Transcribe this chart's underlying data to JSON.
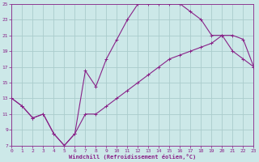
{
  "xlabel": "Windchill (Refroidissement éolien,°C)",
  "line_color": "#882288",
  "bg_color": "#cce8e8",
  "grid_color": "#aacccc",
  "xlim": [
    0,
    23
  ],
  "ylim": [
    7,
    25
  ],
  "xticks": [
    0,
    1,
    2,
    3,
    4,
    5,
    6,
    7,
    8,
    9,
    10,
    11,
    12,
    13,
    14,
    15,
    16,
    17,
    18,
    19,
    20,
    21,
    22,
    23
  ],
  "yticks": [
    7,
    9,
    11,
    13,
    15,
    17,
    19,
    21,
    23,
    25
  ],
  "curve1_x": [
    0,
    1,
    2,
    3,
    4,
    5,
    6,
    7,
    8,
    9,
    10,
    11,
    12,
    13,
    14,
    15,
    16,
    17,
    18,
    19,
    20,
    21,
    22,
    23
  ],
  "curve1_y": [
    13,
    12,
    10.5,
    11,
    8.5,
    7.0,
    8.5,
    16.5,
    14.5,
    18,
    20.5,
    23,
    25,
    25,
    25,
    25,
    25,
    24,
    23,
    21,
    21,
    19,
    18,
    17
  ],
  "curve2_x": [
    0,
    1,
    2,
    3,
    4,
    5,
    6,
    7,
    8,
    9,
    10,
    11,
    12,
    13,
    14,
    15,
    16,
    17,
    18,
    19,
    20,
    21,
    22,
    23
  ],
  "curve2_y": [
    13,
    12,
    10.5,
    11,
    8.5,
    7.0,
    8.5,
    11.0,
    11.0,
    12,
    13,
    14,
    15,
    16,
    17,
    18,
    18.5,
    19,
    19.5,
    20,
    21,
    21,
    20.5,
    17
  ]
}
